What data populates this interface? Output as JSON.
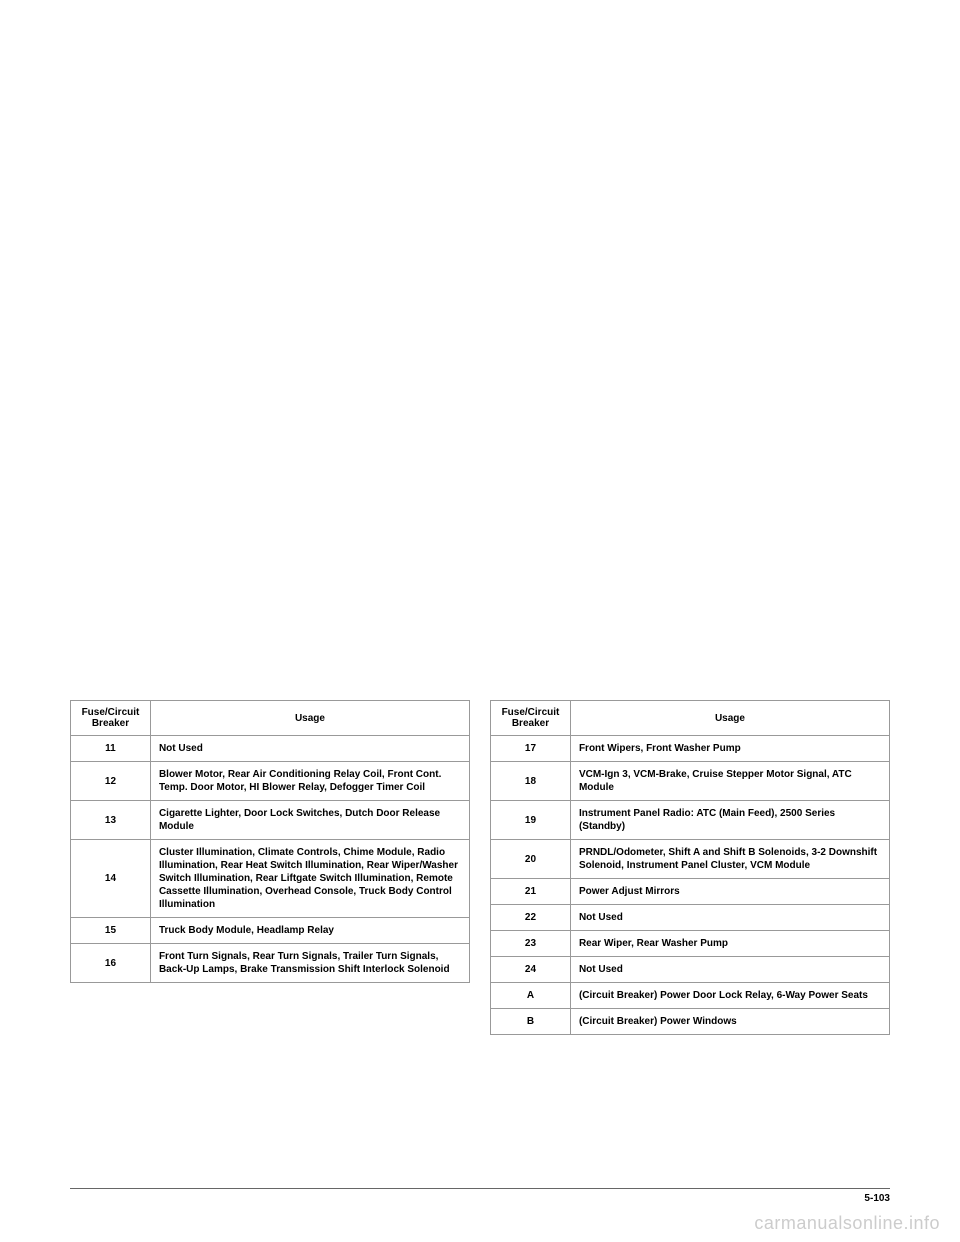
{
  "table1": {
    "header_breaker": "Fuse/Circuit Breaker",
    "header_usage": "Usage",
    "rows": [
      {
        "breaker": "11",
        "usage": "Not Used"
      },
      {
        "breaker": "12",
        "usage": "Blower Motor, Rear Air Conditioning Relay Coil, Front Cont. Temp. Door Motor, HI Blower Relay, Defogger Timer Coil"
      },
      {
        "breaker": "13",
        "usage": "Cigarette Lighter, Door Lock Switches, Dutch Door Release Module"
      },
      {
        "breaker": "14",
        "usage": "Cluster Illumination, Climate Controls, Chime Module, Radio Illumination, Rear Heat Switch Illumination, Rear Wiper/Washer Switch Illumination, Rear Liftgate Switch Illumination, Remote Cassette Illumination, Overhead Console, Truck Body Control Illumination"
      },
      {
        "breaker": "15",
        "usage": "Truck Body Module, Headlamp Relay"
      },
      {
        "breaker": "16",
        "usage": "Front Turn Signals, Rear Turn Signals, Trailer Turn Signals, Back-Up Lamps, Brake Transmission Shift Interlock Solenoid"
      }
    ]
  },
  "table2": {
    "header_breaker": "Fuse/Circuit Breaker",
    "header_usage": "Usage",
    "rows": [
      {
        "breaker": "17",
        "usage": "Front Wipers, Front Washer Pump"
      },
      {
        "breaker": "18",
        "usage": "VCM-Ign 3, VCM-Brake, Cruise Stepper Motor Signal, ATC Module"
      },
      {
        "breaker": "19",
        "usage": "Instrument Panel Radio: ATC (Main Feed), 2500 Series (Standby)"
      },
      {
        "breaker": "20",
        "usage": "PRNDL/Odometer, Shift A and Shift B Solenoids, 3-2 Downshift Solenoid, Instrument Panel Cluster, VCM Module"
      },
      {
        "breaker": "21",
        "usage": "Power Adjust Mirrors"
      },
      {
        "breaker": "22",
        "usage": "Not Used"
      },
      {
        "breaker": "23",
        "usage": "Rear Wiper, Rear Washer Pump"
      },
      {
        "breaker": "24",
        "usage": "Not Used"
      },
      {
        "breaker": "A",
        "usage": "(Circuit Breaker) Power Door Lock Relay, 6-Way Power Seats"
      },
      {
        "breaker": "B",
        "usage": "(Circuit Breaker) Power Windows"
      }
    ]
  },
  "footer": {
    "page_number": "5-103",
    "watermark": "carmanualsonline.info"
  }
}
